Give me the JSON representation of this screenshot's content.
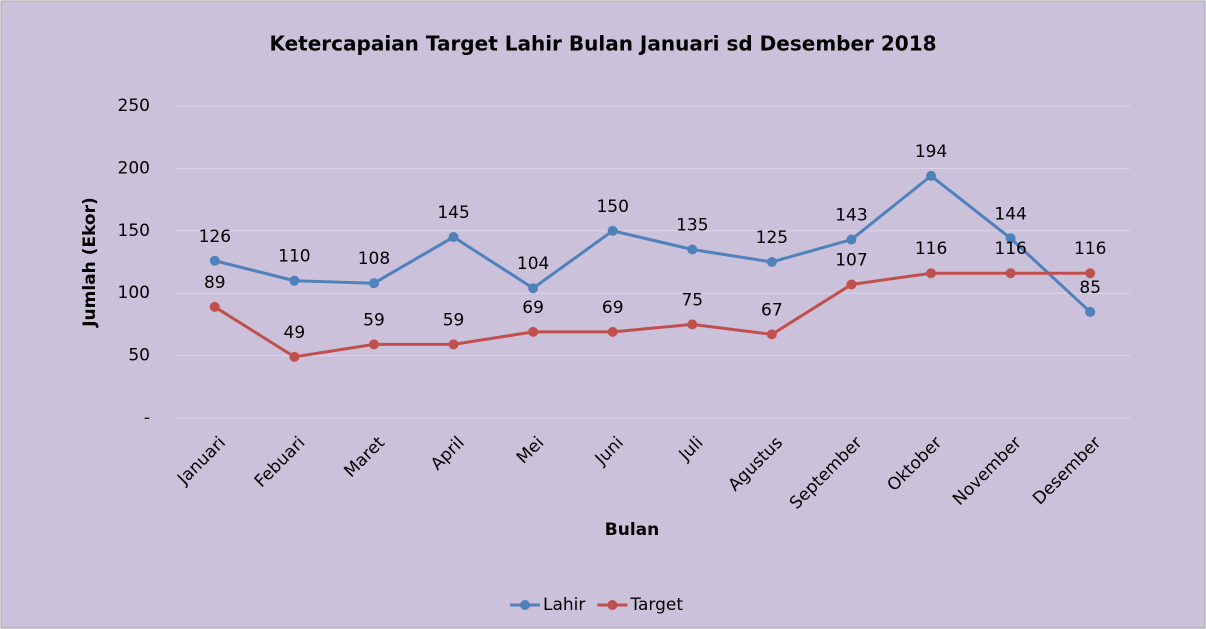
{
  "chart_data": {
    "type": "line",
    "title": "Ketercapaian Target Lahir Bulan Januari sd Desember 2018",
    "x_label": "Bulan",
    "y_label": "Jumlah (Ekor)",
    "categories": [
      "Januari",
      "Febuari",
      "Maret",
      "April",
      "Mei",
      "Juni",
      "Juli",
      "Agustus",
      "September",
      "Oktober",
      "November",
      "Desember"
    ],
    "series": [
      {
        "name": "Lahir",
        "color": "#4f81bd",
        "values": [
          126,
          110,
          108,
          145,
          104,
          150,
          135,
          125,
          143,
          194,
          144,
          85
        ]
      },
      {
        "name": "Target",
        "color": "#c0504d",
        "values": [
          89,
          49,
          59,
          59,
          69,
          69,
          75,
          67,
          107,
          116,
          116,
          116
        ]
      }
    ],
    "ylim": [
      0,
      250
    ],
    "yticks": [
      {
        "value": 0,
        "label": "-"
      },
      50,
      100,
      150,
      200,
      250
    ],
    "grid": true,
    "legend": "bottom"
  }
}
